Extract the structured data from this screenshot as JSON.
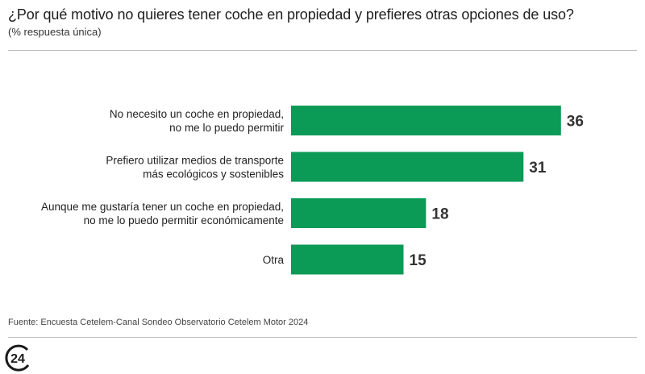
{
  "title": "¿Por qué motivo no quieres tener coche en propiedad y prefieres otras opciones de uso?",
  "subtitle": "(% respuesta única)",
  "source": "Fuente: Encuesta Cetelem-Canal Sondeo Observatorio Cetelem Motor 2024",
  "logo_text": "24",
  "colors": {
    "bar": "#0c9a57",
    "label": "#222222",
    "value": "#333333",
    "logo": "#1a1a1a"
  },
  "chart_data": {
    "type": "bar",
    "orientation": "horizontal",
    "categories": [
      [
        "No necesito un coche en propiedad,",
        "no me lo puedo permitir"
      ],
      [
        "Prefiero utilizar medios de transporte",
        "más ecológicos y sostenibles"
      ],
      [
        "Aunque me gustaría tener un coche en propiedad,",
        "no me lo puedo permitir económicamente"
      ],
      [
        "Otra"
      ]
    ],
    "values": [
      36,
      31,
      18,
      15
    ],
    "xlim": [
      0,
      40
    ],
    "grid": false,
    "legend": "none",
    "data_labels": true
  }
}
